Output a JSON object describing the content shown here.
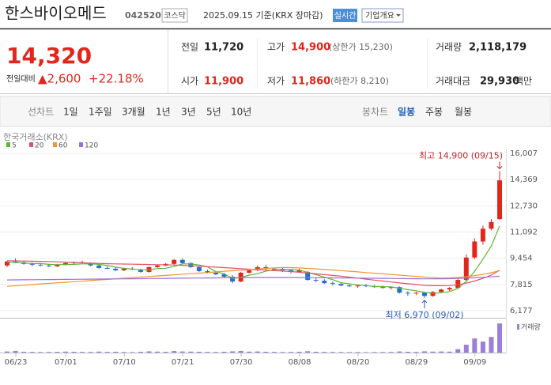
{
  "header": {
    "name": "한스바이오메드",
    "code": "042520",
    "market": "코스닥",
    "date": "2025.09.15 기준(KRX 장마감)",
    "realtime": "실시간",
    "menu": "기업개요"
  },
  "quote": {
    "price": "14,320",
    "change_label": "전일대비",
    "change": "▲2,600",
    "rate": "+22.18%",
    "stats": [
      {
        "label": "전일",
        "value": "11,720",
        "color": "#222222"
      },
      {
        "label": "고가",
        "value": "14,900",
        "note": "(상한가 15,230)",
        "color": "#e2261c"
      },
      {
        "label": "거래량",
        "value": "2,118,179",
        "color": "#222222"
      },
      {
        "label": "시가",
        "value": "11,900",
        "color": "#e2261c"
      },
      {
        "label": "저가",
        "value": "11,860",
        "note": "(하한가 8,210)",
        "color": "#e2261c"
      },
      {
        "label": "거래대금",
        "value": "29,930",
        "unit": "백만",
        "color": "#222222"
      }
    ]
  },
  "tabs": {
    "line": [
      "선차트",
      "1일",
      "1주일",
      "3개월",
      "1년",
      "3년",
      "5년",
      "10년"
    ],
    "candle": [
      "봉차트",
      "일봉",
      "주봉",
      "월봉"
    ],
    "selected": 1
  },
  "chart_data": {
    "type": "candlestick",
    "source": "한국거래소(KRX)",
    "categories": [
      "06/23",
      null,
      null,
      null,
      null,
      null,
      "07/01",
      null,
      null,
      null,
      null,
      null,
      null,
      "07/10",
      null,
      null,
      null,
      null,
      null,
      null,
      "07/21",
      null,
      null,
      null,
      null,
      null,
      null,
      "07/30",
      null,
      null,
      null,
      null,
      null,
      null,
      "08/08",
      null,
      null,
      null,
      null,
      null,
      null,
      "08/20",
      null,
      null,
      null,
      null,
      null,
      null,
      "08/29",
      null,
      null,
      null,
      null,
      null,
      null,
      "09/09",
      null,
      null,
      null,
      null
    ],
    "ohlc": {
      "up_color": "#e2261c",
      "down_color": "#2a6ad6",
      "open": [
        9000,
        9250,
        9200,
        9100,
        9050,
        9000,
        8950,
        9050,
        9150,
        9200,
        9150,
        9000,
        8850,
        8800,
        8700,
        8800,
        8750,
        8600,
        8900,
        9000,
        9100,
        9350,
        9150,
        8900,
        8650,
        8550,
        8450,
        8300,
        8000,
        8550,
        8700,
        8900,
        8800,
        8750,
        8700,
        8600,
        8600,
        8100,
        8050,
        7900,
        7850,
        7750,
        7700,
        7750,
        7700,
        7650,
        7600,
        7650,
        7300,
        7250,
        7300,
        7100,
        7350,
        7500,
        7600,
        8100,
        9500,
        10500,
        11300,
        11900
      ],
      "high": [
        9300,
        9450,
        9300,
        9200,
        9150,
        9100,
        9100,
        9200,
        9250,
        9300,
        9200,
        9100,
        8950,
        8900,
        8850,
        8900,
        8800,
        8950,
        9050,
        9150,
        9400,
        9450,
        9200,
        8950,
        8750,
        8650,
        8550,
        8400,
        8600,
        8750,
        9000,
        9050,
        8850,
        8850,
        8750,
        8800,
        8650,
        8200,
        8150,
        8000,
        7950,
        7850,
        7800,
        7850,
        7800,
        7750,
        7700,
        7700,
        7400,
        7350,
        7350,
        7400,
        7550,
        7650,
        8200,
        9700,
        10700,
        11500,
        11900,
        14900
      ],
      "low": [
        8900,
        9150,
        9050,
        8950,
        8950,
        8900,
        8900,
        9000,
        9050,
        9100,
        8950,
        8800,
        8750,
        8650,
        8650,
        8700,
        8550,
        8550,
        8850,
        8950,
        9050,
        9100,
        8850,
        8600,
        8500,
        8400,
        8200,
        7900,
        7950,
        8500,
        8650,
        8750,
        8650,
        8600,
        8500,
        8550,
        8050,
        7950,
        7850,
        7750,
        7700,
        7650,
        7600,
        7650,
        7600,
        7550,
        7500,
        7250,
        7100,
        7150,
        6970,
        7050,
        7300,
        7400,
        7550,
        8050,
        9400,
        10300,
        11200,
        11860
      ],
      "close": [
        9250,
        9200,
        9100,
        9050,
        9000,
        8950,
        9050,
        9150,
        9200,
        9150,
        9000,
        8850,
        8800,
        8700,
        8800,
        8750,
        8600,
        8900,
        9000,
        9100,
        9350,
        9150,
        8900,
        8650,
        8550,
        8450,
        8300,
        8000,
        8550,
        8700,
        8900,
        8800,
        8750,
        8700,
        8600,
        8700,
        8100,
        8050,
        7900,
        7850,
        7750,
        7700,
        7750,
        7700,
        7650,
        7600,
        7650,
        7300,
        7250,
        7300,
        7100,
        7350,
        7500,
        7600,
        8100,
        9500,
        10500,
        11300,
        11720,
        14320
      ]
    },
    "series": [
      {
        "name": "5",
        "color": "#5cb531",
        "values": [
          9200,
          9190,
          9160,
          9120,
          9120,
          9070,
          9050,
          9060,
          9070,
          9100,
          9110,
          9070,
          9000,
          8900,
          8830,
          8780,
          8730,
          8730,
          8810,
          8830,
          8940,
          9100,
          9100,
          9030,
          8920,
          8610,
          8480,
          8190,
          8250,
          8400,
          8490,
          8650,
          8740,
          8770,
          8750,
          8710,
          8570,
          8430,
          8270,
          8120,
          7930,
          7850,
          7790,
          7750,
          7690,
          7680,
          7670,
          7580,
          7490,
          7420,
          7320,
          7260,
          7300,
          7370,
          7570,
          8010,
          8640,
          9400,
          10220,
          11470
        ]
      },
      {
        "name": "20",
        "color": "#e0506a",
        "values": [
          9300,
          9290,
          9280,
          9270,
          9260,
          9250,
          9230,
          9210,
          9190,
          9170,
          9150,
          9130,
          9110,
          9100,
          9090,
          9080,
          9070,
          9060,
          9050,
          9040,
          9030,
          9010,
          8990,
          8960,
          8930,
          8900,
          8870,
          8840,
          8800,
          8770,
          8740,
          8710,
          8680,
          8650,
          8620,
          8580,
          8530,
          8480,
          8430,
          8380,
          8330,
          8270,
          8210,
          8150,
          8090,
          8030,
          7970,
          7910,
          7860,
          7810,
          7760,
          7740,
          7740,
          7750,
          7790,
          7900,
          8030,
          8200,
          8400,
          8700
        ]
      },
      {
        "name": "60",
        "color": "#f0962e",
        "values": [
          7700,
          7740,
          7770,
          7810,
          7850,
          7880,
          7920,
          7950,
          7990,
          8020,
          8060,
          8100,
          8130,
          8170,
          8200,
          8240,
          8280,
          8310,
          8350,
          8380,
          8420,
          8460,
          8490,
          8530,
          8560,
          8600,
          8640,
          8670,
          8710,
          8740,
          8780,
          8820,
          8850,
          8880,
          8870,
          8850,
          8820,
          8790,
          8750,
          8720,
          8680,
          8640,
          8600,
          8560,
          8520,
          8480,
          8440,
          8400,
          8360,
          8320,
          8280,
          8240,
          8210,
          8220,
          8250,
          8300,
          8370,
          8450,
          8550,
          8680
        ]
      },
      {
        "name": "120",
        "color": "#9b6fd8",
        "values": [
          8100,
          8105,
          8110,
          8115,
          8120,
          8125,
          8130,
          8135,
          8140,
          8145,
          8150,
          8155,
          8160,
          8165,
          8170,
          8175,
          8180,
          8185,
          8190,
          8195,
          8200,
          8205,
          8210,
          8215,
          8220,
          8225,
          8230,
          8235,
          8240,
          8245,
          8250,
          8250,
          8250,
          8250,
          8250,
          8245,
          8240,
          8235,
          8230,
          8225,
          8220,
          8215,
          8210,
          8205,
          8200,
          8195,
          8190,
          8185,
          8180,
          8175,
          8170,
          8170,
          8175,
          8180,
          8190,
          8210,
          8230,
          8260,
          8290,
          8330
        ]
      }
    ],
    "volume": {
      "name": "거래량",
      "color": "#9b7fd8",
      "ylim": [
        0,
        2300000
      ],
      "values": [
        80000,
        120000,
        60000,
        50000,
        40000,
        45000,
        55000,
        70000,
        60000,
        50000,
        45000,
        70000,
        50000,
        60000,
        40000,
        35000,
        60000,
        90000,
        70000,
        60000,
        110000,
        80000,
        70000,
        60000,
        50000,
        45000,
        60000,
        90000,
        120000,
        70000,
        80000,
        60000,
        50000,
        40000,
        45000,
        60000,
        100000,
        60000,
        50000,
        45000,
        40000,
        35000,
        40000,
        30000,
        35000,
        40000,
        45000,
        80000,
        60000,
        50000,
        90000,
        70000,
        80000,
        70000,
        250000,
        570000,
        1030000,
        800000,
        1140000,
        2118179
      ]
    },
    "ylim": [
      6177,
      16007
    ],
    "yticks": [
      {
        "value": 6177,
        "label": "6,177"
      },
      {
        "value": 7815,
        "label": "7,815"
      },
      {
        "value": 9454,
        "label": "9,454"
      },
      {
        "value": 11092,
        "label": "11,092"
      },
      {
        "value": 12730,
        "label": "12,730"
      },
      {
        "value": 14369,
        "label": "14,369"
      },
      {
        "value": 16007,
        "label": "16,007"
      }
    ],
    "grid": true,
    "annotations": [
      {
        "text": "최고 14,900 (09/15)",
        "value": 14900,
        "color": "#c0282c"
      },
      {
        "text": "최저 6,970 (09/02)",
        "value": 6970,
        "color": "#2a5ab0"
      }
    ]
  }
}
